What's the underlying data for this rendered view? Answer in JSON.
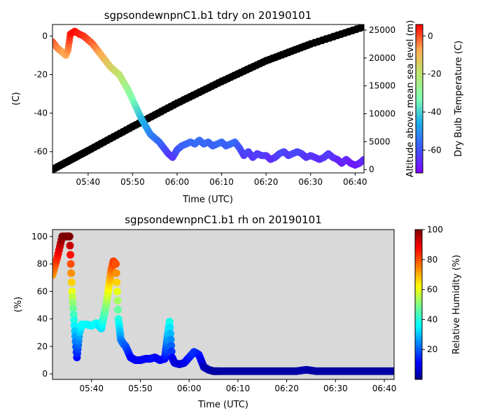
{
  "chart_data": [
    {
      "type": "scatter",
      "title": "sgpsondewnpnC1.b1 tdry on 20190101",
      "xlabel": "Time (UTC)",
      "ylabel": "(C)",
      "y2label": "Altitude above mean sea level (m)",
      "colorbar_label": "Dry Bulb Temperature (C)",
      "colormap": "rainbow",
      "xlim": [
        "05:32",
        "06:42"
      ],
      "ylim": [
        -71,
        6
      ],
      "y2lim": [
        -600,
        26000
      ],
      "clim": [
        -70,
        3
      ],
      "grid": false,
      "xticks": [
        "05:40",
        "05:50",
        "06:00",
        "06:10",
        "06:20",
        "06:30",
        "06:40"
      ],
      "yticks": [
        0,
        -20,
        -40,
        -60
      ],
      "y2ticks": [
        0,
        5000,
        10000,
        15000,
        20000,
        25000
      ],
      "cticks": [
        0,
        -20,
        -40,
        -60
      ],
      "temperature": {
        "name": "tdry",
        "x": [
          "05:32",
          "05:33",
          "05:34",
          "05:35",
          "05:35:30",
          "05:36",
          "05:37",
          "05:38",
          "05:39",
          "05:40",
          "05:41",
          "05:42",
          "05:43",
          "05:44",
          "05:45",
          "05:46",
          "05:47",
          "05:48",
          "05:49",
          "05:50",
          "05:51",
          "05:52",
          "05:53",
          "05:54",
          "05:55",
          "05:56",
          "05:57",
          "05:58",
          "05:59",
          "06:00",
          "06:01",
          "06:02",
          "06:03",
          "06:04",
          "06:05",
          "06:06",
          "06:07",
          "06:08",
          "06:09",
          "06:10",
          "06:11",
          "06:12",
          "06:13",
          "06:14",
          "06:15",
          "06:16",
          "06:17",
          "06:18",
          "06:19",
          "06:20",
          "06:21",
          "06:22",
          "06:23",
          "06:24",
          "06:25",
          "06:26",
          "06:27",
          "06:28",
          "06:29",
          "06:30",
          "06:31",
          "06:32",
          "06:33",
          "06:34",
          "06:35",
          "06:36",
          "06:37",
          "06:38",
          "06:39",
          "06:40",
          "06:41",
          "06:42"
        ],
        "y": [
          -3,
          -6,
          -8,
          -10,
          -7,
          1,
          2.5,
          1,
          0,
          -2,
          -4,
          -7,
          -10,
          -13,
          -16,
          -18,
          -20,
          -24,
          -28,
          -33,
          -38,
          -43,
          -47,
          -51,
          -53,
          -55,
          -58,
          -61,
          -63,
          -59,
          -57,
          -56,
          -55,
          -56,
          -54,
          -56,
          -55,
          -57,
          -56,
          -55,
          -57,
          -56,
          -55,
          -58,
          -62,
          -60,
          -63,
          -61,
          -62,
          -62,
          -64,
          -63,
          -61,
          -60,
          -62,
          -61,
          -60,
          -61,
          -63,
          -62,
          -63,
          -64,
          -63,
          -61,
          -63,
          -64,
          -66,
          -64,
          -66,
          -67,
          -66,
          -64
        ]
      },
      "altitude": {
        "name": "alt",
        "x": [
          "05:32",
          "05:40",
          "05:50",
          "06:00",
          "06:10",
          "06:20",
          "06:30",
          "06:42"
        ],
        "y": [
          0,
          3400,
          7700,
          11900,
          15800,
          19500,
          22500,
          25600
        ]
      }
    },
    {
      "type": "scatter",
      "title": "sgpsondewnpnC1.b1 rh on 20190101",
      "xlabel": "Time (UTC)",
      "ylabel": "(%)",
      "colorbar_label": "Relative Humidity (%)",
      "colormap": "jet",
      "background": "#d9d9d9",
      "xlim": [
        "05:32",
        "06:42"
      ],
      "ylim": [
        -4,
        105
      ],
      "clim": [
        0,
        100
      ],
      "grid": false,
      "xticks": [
        "05:40",
        "05:50",
        "06:00",
        "06:10",
        "06:20",
        "06:30",
        "06:40"
      ],
      "yticks": [
        0,
        20,
        40,
        60,
        80,
        100
      ],
      "cticks": [
        20,
        40,
        60,
        80,
        100
      ],
      "rh": {
        "name": "rh",
        "x": [
          "05:32",
          "05:33",
          "05:34",
          "05:35",
          "05:35:30",
          "05:36",
          "05:36:30",
          "05:37",
          "05:37:30",
          "05:38",
          "05:39",
          "05:40",
          "05:41",
          "05:42",
          "05:42:30",
          "05:43",
          "05:43:30",
          "05:44",
          "05:44:30",
          "05:45",
          "05:45:30",
          "05:46",
          "05:46:30",
          "05:47",
          "05:48",
          "05:49",
          "05:50",
          "05:51",
          "05:52",
          "05:53",
          "05:54",
          "05:55",
          "05:55:30",
          "05:56",
          "05:56:30",
          "05:57",
          "05:58",
          "05:59",
          "06:00",
          "06:01",
          "06:02",
          "06:03",
          "06:04",
          "06:05",
          "06:06",
          "06:08",
          "06:10",
          "06:12",
          "06:14",
          "06:16",
          "06:18",
          "06:20",
          "06:22",
          "06:24",
          "06:26",
          "06:28",
          "06:30",
          "06:32",
          "06:34",
          "06:36",
          "06:38",
          "06:40",
          "06:42"
        ],
        "y": [
          72,
          85,
          100,
          100,
          100,
          60,
          35,
          12,
          30,
          36,
          36,
          35,
          37,
          33,
          42,
          50,
          62,
          75,
          82,
          80,
          40,
          25,
          22,
          20,
          12,
          10,
          10,
          11,
          11,
          12,
          10,
          11,
          25,
          38,
          12,
          8,
          7,
          8,
          12,
          16,
          14,
          5,
          3,
          2,
          2,
          2,
          2,
          2,
          2,
          2,
          2,
          2,
          2,
          3,
          2,
          2,
          2,
          2,
          2,
          2,
          2,
          2,
          2
        ]
      }
    }
  ]
}
